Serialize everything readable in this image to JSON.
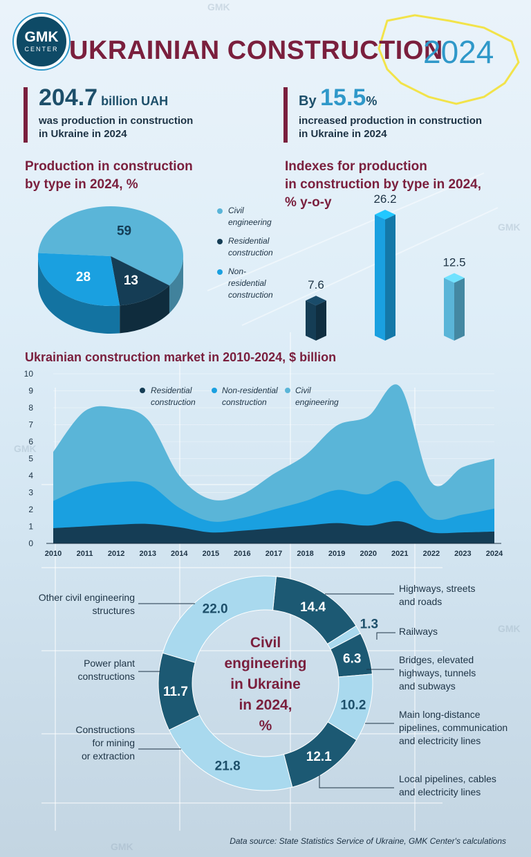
{
  "header": {
    "logo_top": "GMK",
    "logo_bottom": "CENTER",
    "title": "UKRAINIAN CONSTRUCTION",
    "year": "2024"
  },
  "stats": [
    {
      "prefix": "",
      "number": "204.7",
      "unit": " billion UAH",
      "text_line1": "was production in construction",
      "text_line2": "in Ukraine in 2024"
    },
    {
      "prefix": "By ",
      "number": "15.5",
      "unit": "%",
      "text_line1": "increased production in construction",
      "text_line2": "in Ukraine in 2024"
    }
  ],
  "colors": {
    "civil": "#5ab5d8",
    "residential": "#153d55",
    "nonresidential": "#1aa0e0",
    "accent": "#7a1f3d"
  },
  "source": "Data source: State Statistics Service of Ukraine, GMK Center's calculations",
  "chart_data": [
    {
      "type": "pie",
      "title_line1": "Production in construction",
      "title_line2": "by type in 2024, %",
      "slices": [
        {
          "name": "Civil engineering",
          "name_line1": "Civil",
          "name_line2": "engineering",
          "value": 59,
          "color": "#5ab5d8"
        },
        {
          "name": "Residential construction",
          "name_line1": "Residential",
          "name_line2": "construction",
          "value": 13,
          "color": "#153d55"
        },
        {
          "name": "Non-residential construction",
          "name_line1": "Non-residential",
          "name_line2": "construction",
          "value": 28,
          "color": "#1aa0e0"
        }
      ]
    },
    {
      "type": "bar",
      "title_line1": "Indexes for production",
      "title_line2": "in construction by type in 2024,",
      "title_line3": "% y-o-y",
      "categories": [
        "Residential construction",
        "Non-residential construction",
        "Civil engineering"
      ],
      "values": [
        7.6,
        26.2,
        12.5
      ],
      "labels": [
        "7.6",
        "26.2",
        "12.5"
      ],
      "colors": [
        "#153d55",
        "#1aa0e0",
        "#5ab5d8"
      ]
    },
    {
      "type": "area",
      "title": "Ukrainian construction market in 2010-2024, $ billion",
      "x": [
        "2010",
        "2011",
        "2012",
        "2013",
        "2014",
        "2015",
        "2016",
        "2017",
        "2018",
        "2019",
        "2020",
        "2021",
        "2022",
        "2023",
        "2024"
      ],
      "ylim": [
        0,
        10
      ],
      "yticks": [
        "0",
        "1",
        "2",
        "3",
        "4",
        "5",
        "6",
        "7",
        "8",
        "9",
        "10"
      ],
      "stacked": true,
      "series": [
        {
          "name": "Residential construction",
          "name_line1": "Residential",
          "name_line2": "construction",
          "color": "#153d55",
          "values": [
            0.9,
            1.0,
            1.1,
            1.15,
            0.95,
            0.65,
            0.75,
            0.9,
            1.05,
            1.2,
            1.05,
            1.3,
            0.65,
            0.65,
            0.7
          ]
        },
        {
          "name": "Non-residential construction",
          "name_line1": "Non-residential",
          "name_line2": "construction",
          "color": "#1aa0e0",
          "values": [
            1.6,
            2.3,
            2.5,
            2.35,
            1.15,
            0.65,
            0.75,
            1.1,
            1.45,
            1.95,
            1.85,
            2.35,
            0.85,
            1.05,
            1.35
          ]
        },
        {
          "name": "Civil engineering",
          "name_line1": "Civil",
          "name_line2": "engineering",
          "color": "#5ab5d8",
          "values": [
            2.9,
            4.5,
            4.4,
            3.8,
            1.9,
            1.3,
            1.4,
            2.1,
            2.7,
            3.8,
            4.6,
            5.6,
            2.1,
            2.8,
            2.95
          ]
        }
      ]
    },
    {
      "type": "pie",
      "title_line1": "Civil",
      "title_line2": "engineering",
      "title_line3": "in Ukraine",
      "title_line4": "in 2024,",
      "title_line5": "%",
      "slices": [
        {
          "name": "Highways, streets and roads",
          "value": 14.4,
          "label": "14.4",
          "color": "#1c5973",
          "line1": "Highways, streets",
          "line2": "and roads",
          "line3": ""
        },
        {
          "name": "Railways",
          "value": 1.3,
          "label": "1.3",
          "color": "#a9d9ee",
          "line1": "Railways",
          "line2": "",
          "line3": ""
        },
        {
          "name": "Bridges, elevated highways, tunnels and subways",
          "value": 6.3,
          "label": "6.3",
          "color": "#1c5973",
          "line1": "Bridges, elevated",
          "line2": "highways, tunnels",
          "line3": "and subways"
        },
        {
          "name": "Main long-distance pipelines, communication and electricity lines",
          "value": 10.2,
          "label": "10.2",
          "color": "#a9d9ee",
          "line1": "Main long-distance",
          "line2": "pipelines, communication",
          "line3": "and electricity lines"
        },
        {
          "name": "Local pipelines, cables and electricity lines",
          "value": 12.1,
          "label": "12.1",
          "color": "#1c5973",
          "line1": "Local pipelines, cables",
          "line2": "and electricity lines",
          "line3": ""
        },
        {
          "name": "Constructions for mining or extraction",
          "value": 21.8,
          "label": "21.8",
          "color": "#a9d9ee",
          "line1": "Constructions",
          "line2": "for mining",
          "line3": "or extraction"
        },
        {
          "name": "Power plant constructions",
          "value": 11.7,
          "label": "11.7",
          "color": "#1c5973",
          "line1": "Power plant",
          "line2": "constructions",
          "line3": ""
        },
        {
          "name": "Other civil engineering structures",
          "value": 22.0,
          "label": "22.0",
          "color": "#a9d9ee",
          "line1": "Other civil engineering",
          "line2": "structures",
          "line3": ""
        }
      ]
    }
  ]
}
